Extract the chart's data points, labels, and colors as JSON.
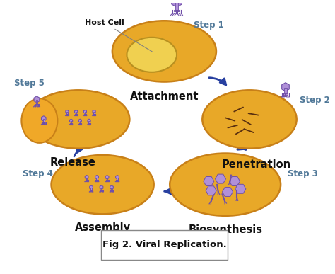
{
  "bg_color": "#ffffff",
  "title": "Fig 2. Viral Replication.",
  "cell_fill": "#E8A828",
  "cell_edge": "#C88018",
  "nucleus_fill": "#F0D050",
  "nucleus_edge": "#B89020",
  "virus_fill": "#B090D8",
  "virus_edge": "#7050A8",
  "dna_color": "#5A3010",
  "arrow_color": "#2840A0",
  "step_color": "#507898",
  "label_color": "#111111",
  "steps": [
    "Step 1",
    "Step 2",
    "Step 3",
    "Step 4",
    "Step 5"
  ],
  "labels": [
    "Attachment",
    "Penetration",
    "Biosynthesis",
    "Assembly",
    "Release"
  ],
  "host_cell_label": "Host Cell",
  "fig_caption": "Fig 2. Viral Replication.",
  "caption_fontsize": 9.5,
  "step_fontsize": 8.5,
  "label_fontsize": 10.5
}
